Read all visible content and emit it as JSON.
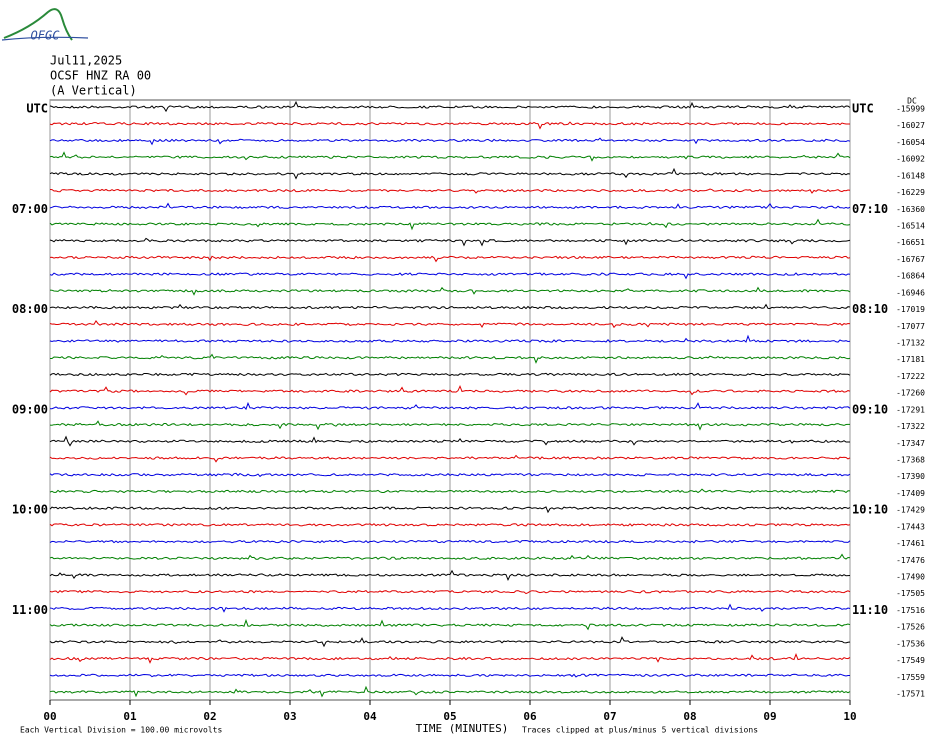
{
  "chart_data": {
    "type": "helicorder",
    "logo": "OFGC",
    "date": "Jul11,2025",
    "station": "OCSF HNZ RA 00",
    "component": "(A Vertical)",
    "offset_header": "DC",
    "x_label": "TIME (MINUTES)",
    "scale_note": "Each Vertical Division =  100.00 microvolts",
    "clip_note": "Traces clipped at plus/minus 5 vertical divisions",
    "xlim": [
      0,
      10
    ],
    "xticks": [
      {
        "value": 0,
        "label": "00"
      },
      {
        "value": 1,
        "label": "01"
      },
      {
        "value": 2,
        "label": "02"
      },
      {
        "value": 3,
        "label": "03"
      },
      {
        "value": 4,
        "label": "04"
      },
      {
        "value": 5,
        "label": "05"
      },
      {
        "value": 6,
        "label": "06"
      },
      {
        "value": 7,
        "label": "07"
      },
      {
        "value": 8,
        "label": "08"
      },
      {
        "value": 9,
        "label": "09"
      },
      {
        "value": 10,
        "label": "10"
      }
    ],
    "grid": true,
    "trace_colors": [
      "#000000",
      "#e00000",
      "#0000e0",
      "#008000"
    ],
    "rows": [
      {
        "left": "UTC",
        "right": "UTC",
        "offset": -15999
      },
      {
        "left": null,
        "right": null,
        "offset": -16027
      },
      {
        "left": null,
        "right": null,
        "offset": -16054
      },
      {
        "left": null,
        "right": null,
        "offset": -16092
      },
      {
        "left": null,
        "right": null,
        "offset": -16148
      },
      {
        "left": null,
        "right": null,
        "offset": -16229
      },
      {
        "left": "07:00",
        "right": "07:10",
        "offset": -16360
      },
      {
        "left": null,
        "right": null,
        "offset": -16514
      },
      {
        "left": null,
        "right": null,
        "offset": -16651
      },
      {
        "left": null,
        "right": null,
        "offset": -16767
      },
      {
        "left": null,
        "right": null,
        "offset": -16864
      },
      {
        "left": null,
        "right": null,
        "offset": -16946
      },
      {
        "left": "08:00",
        "right": "08:10",
        "offset": -17019
      },
      {
        "left": null,
        "right": null,
        "offset": -17077
      },
      {
        "left": null,
        "right": null,
        "offset": -17132
      },
      {
        "left": null,
        "right": null,
        "offset": -17181
      },
      {
        "left": null,
        "right": null,
        "offset": -17222
      },
      {
        "left": null,
        "right": null,
        "offset": -17260
      },
      {
        "left": "09:00",
        "right": "09:10",
        "offset": -17291
      },
      {
        "left": null,
        "right": null,
        "offset": -17322
      },
      {
        "left": null,
        "right": null,
        "offset": -17347
      },
      {
        "left": null,
        "right": null,
        "offset": -17368
      },
      {
        "left": null,
        "right": null,
        "offset": -17390
      },
      {
        "left": null,
        "right": null,
        "offset": -17409
      },
      {
        "left": "10:00",
        "right": "10:10",
        "offset": -17429
      },
      {
        "left": null,
        "right": null,
        "offset": -17443
      },
      {
        "left": null,
        "right": null,
        "offset": -17461
      },
      {
        "left": null,
        "right": null,
        "offset": -17476
      },
      {
        "left": null,
        "right": null,
        "offset": -17490
      },
      {
        "left": null,
        "right": null,
        "offset": -17505
      },
      {
        "left": "11:00",
        "right": "11:10",
        "offset": -17516
      },
      {
        "left": null,
        "right": null,
        "offset": -17526
      },
      {
        "left": null,
        "right": null,
        "offset": -17536
      },
      {
        "left": null,
        "right": null,
        "offset": -17549
      },
      {
        "left": null,
        "right": null,
        "offset": -17559
      },
      {
        "left": null,
        "right": null,
        "offset": -17571
      }
    ]
  }
}
